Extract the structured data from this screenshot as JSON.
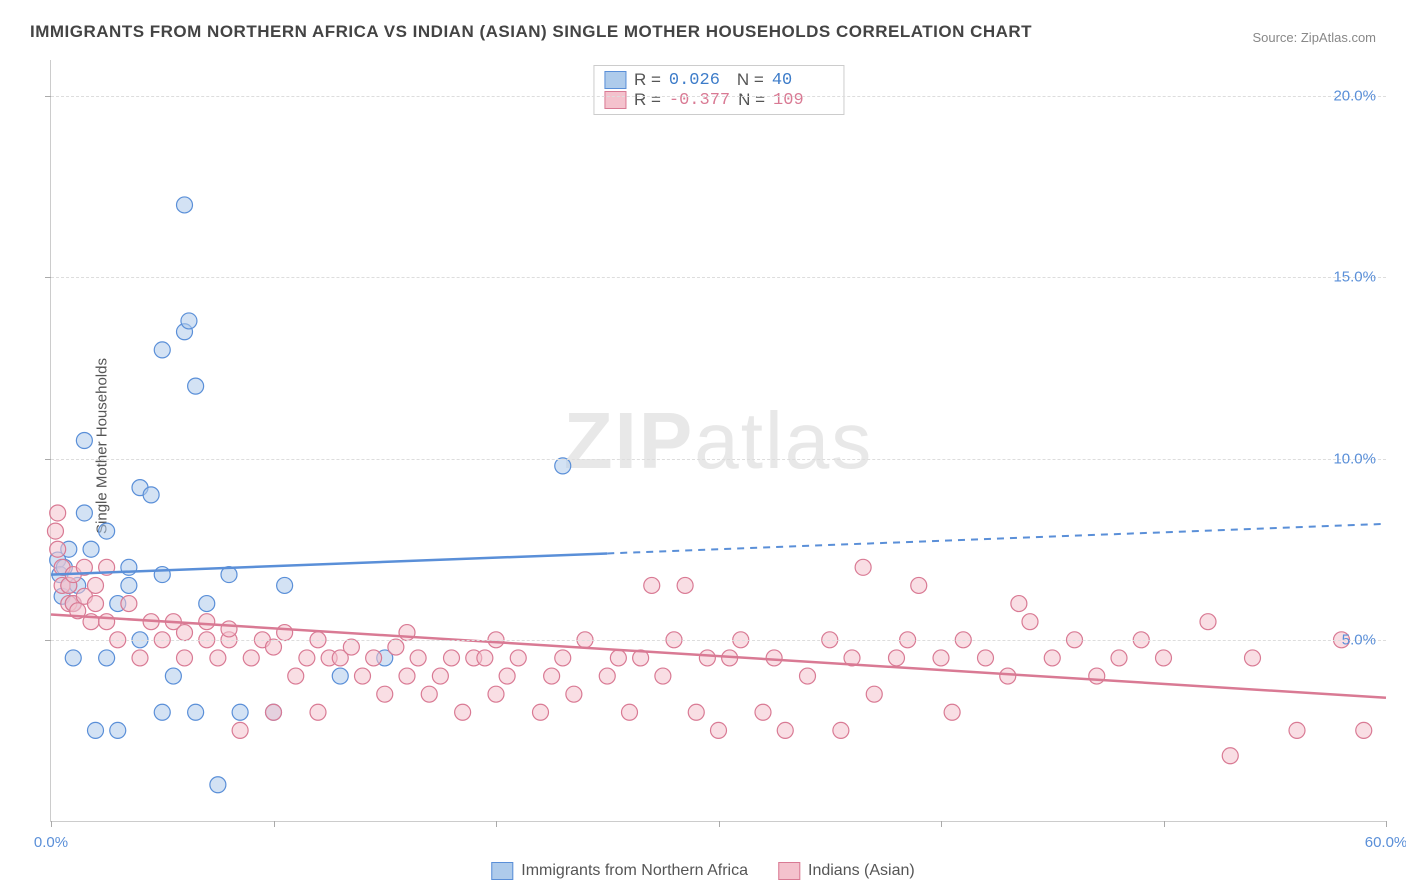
{
  "title": "IMMIGRANTS FROM NORTHERN AFRICA VS INDIAN (ASIAN) SINGLE MOTHER HOUSEHOLDS CORRELATION CHART",
  "source": "Source: ZipAtlas.com",
  "ylabel": "Single Mother Households",
  "watermark_bold": "ZIP",
  "watermark_light": "atlas",
  "chart": {
    "type": "scatter",
    "xlim": [
      0,
      60
    ],
    "ylim": [
      0,
      21
    ],
    "xtick_positions": [
      0,
      10,
      20,
      30,
      40,
      50,
      60
    ],
    "xtick_labels": [
      "0.0%",
      "",
      "",
      "",
      "",
      "",
      "60.0%"
    ],
    "ytick_positions": [
      5,
      10,
      15,
      20
    ],
    "ytick_labels": [
      "5.0%",
      "10.0%",
      "15.0%",
      "20.0%"
    ],
    "grid_color": "#dddddd",
    "background_color": "#ffffff",
    "axis_label_color": "#5a8fd8",
    "series": [
      {
        "name": "Immigrants from Northern Africa",
        "fill": "#aecbeb",
        "stroke": "#5a8fd8",
        "fill_opacity": 0.55,
        "marker_r": 8,
        "r_value": "0.026",
        "n_value": "40",
        "stat_color": "#3d7cc9",
        "regression": {
          "x1": 0,
          "y1": 6.8,
          "x2": 60,
          "y2": 8.2,
          "solid_until_x": 25
        },
        "points": [
          [
            0.3,
            7.2
          ],
          [
            0.4,
            6.8
          ],
          [
            0.5,
            6.2
          ],
          [
            0.6,
            7.0
          ],
          [
            0.8,
            6.5
          ],
          [
            0.8,
            7.5
          ],
          [
            1.0,
            4.5
          ],
          [
            1.0,
            6.0
          ],
          [
            1.2,
            6.5
          ],
          [
            1.5,
            8.5
          ],
          [
            1.5,
            10.5
          ],
          [
            1.8,
            7.5
          ],
          [
            2.0,
            2.5
          ],
          [
            2.5,
            4.5
          ],
          [
            2.5,
            8.0
          ],
          [
            3.0,
            2.5
          ],
          [
            3.0,
            6.0
          ],
          [
            3.5,
            6.5
          ],
          [
            3.5,
            7.0
          ],
          [
            4.0,
            5.0
          ],
          [
            4.0,
            9.2
          ],
          [
            4.5,
            9.0
          ],
          [
            5.0,
            3.0
          ],
          [
            5.0,
            6.8
          ],
          [
            5.0,
            13.0
          ],
          [
            5.5,
            4.0
          ],
          [
            6.0,
            13.5
          ],
          [
            6.0,
            17.0
          ],
          [
            6.2,
            13.8
          ],
          [
            6.5,
            3.0
          ],
          [
            6.5,
            12.0
          ],
          [
            7.0,
            6.0
          ],
          [
            7.5,
            1.0
          ],
          [
            8.0,
            6.8
          ],
          [
            8.5,
            3.0
          ],
          [
            10.0,
            3.0
          ],
          [
            10.5,
            6.5
          ],
          [
            13.0,
            4.0
          ],
          [
            15.0,
            4.5
          ],
          [
            23.0,
            9.8
          ]
        ]
      },
      {
        "name": "Indians (Asian)",
        "fill": "#f4c2cd",
        "stroke": "#d97a94",
        "fill_opacity": 0.55,
        "marker_r": 8,
        "r_value": "-0.377",
        "n_value": "109",
        "stat_color": "#d97a94",
        "regression": {
          "x1": 0,
          "y1": 5.7,
          "x2": 60,
          "y2": 3.4,
          "solid_until_x": 60
        },
        "points": [
          [
            0.2,
            8.0
          ],
          [
            0.3,
            7.5
          ],
          [
            0.3,
            8.5
          ],
          [
            0.5,
            6.5
          ],
          [
            0.5,
            7.0
          ],
          [
            0.8,
            6.0
          ],
          [
            0.8,
            6.5
          ],
          [
            1.0,
            6.0
          ],
          [
            1.0,
            6.8
          ],
          [
            1.2,
            5.8
          ],
          [
            1.5,
            6.2
          ],
          [
            1.5,
            7.0
          ],
          [
            1.8,
            5.5
          ],
          [
            2.0,
            6.0
          ],
          [
            2.0,
            6.5
          ],
          [
            2.5,
            5.5
          ],
          [
            2.5,
            7.0
          ],
          [
            3.0,
            5.0
          ],
          [
            3.5,
            6.0
          ],
          [
            4.0,
            4.5
          ],
          [
            4.5,
            5.5
          ],
          [
            5.0,
            5.0
          ],
          [
            5.5,
            5.5
          ],
          [
            6.0,
            4.5
          ],
          [
            6.0,
            5.2
          ],
          [
            7.0,
            5.0
          ],
          [
            7.0,
            5.5
          ],
          [
            7.5,
            4.5
          ],
          [
            8.0,
            5.0
          ],
          [
            8.0,
            5.3
          ],
          [
            8.5,
            2.5
          ],
          [
            9.0,
            4.5
          ],
          [
            9.5,
            5.0
          ],
          [
            10.0,
            3.0
          ],
          [
            10.0,
            4.8
          ],
          [
            10.5,
            5.2
          ],
          [
            11.0,
            4.0
          ],
          [
            11.5,
            4.5
          ],
          [
            12.0,
            3.0
          ],
          [
            12.0,
            5.0
          ],
          [
            12.5,
            4.5
          ],
          [
            13.0,
            4.5
          ],
          [
            13.5,
            4.8
          ],
          [
            14.0,
            4.0
          ],
          [
            14.5,
            4.5
          ],
          [
            15.0,
            3.5
          ],
          [
            15.5,
            4.8
          ],
          [
            16.0,
            4.0
          ],
          [
            16.0,
            5.2
          ],
          [
            16.5,
            4.5
          ],
          [
            17.0,
            3.5
          ],
          [
            17.5,
            4.0
          ],
          [
            18.0,
            4.5
          ],
          [
            18.5,
            3.0
          ],
          [
            19.0,
            4.5
          ],
          [
            19.5,
            4.5
          ],
          [
            20.0,
            3.5
          ],
          [
            20.0,
            5.0
          ],
          [
            20.5,
            4.0
          ],
          [
            21.0,
            4.5
          ],
          [
            22.0,
            3.0
          ],
          [
            22.5,
            4.0
          ],
          [
            23.0,
            4.5
          ],
          [
            23.5,
            3.5
          ],
          [
            24.0,
            5.0
          ],
          [
            25.0,
            4.0
          ],
          [
            25.5,
            4.5
          ],
          [
            26.0,
            3.0
          ],
          [
            26.5,
            4.5
          ],
          [
            27.0,
            6.5
          ],
          [
            27.5,
            4.0
          ],
          [
            28.0,
            5.0
          ],
          [
            28.5,
            6.5
          ],
          [
            29.0,
            3.0
          ],
          [
            29.5,
            4.5
          ],
          [
            30.0,
            2.5
          ],
          [
            30.5,
            4.5
          ],
          [
            31.0,
            5.0
          ],
          [
            32.0,
            3.0
          ],
          [
            32.5,
            4.5
          ],
          [
            33.0,
            2.5
          ],
          [
            34.0,
            4.0
          ],
          [
            35.0,
            5.0
          ],
          [
            35.5,
            2.5
          ],
          [
            36.0,
            4.5
          ],
          [
            36.5,
            7.0
          ],
          [
            37.0,
            3.5
          ],
          [
            38.0,
            4.5
          ],
          [
            38.5,
            5.0
          ],
          [
            39.0,
            6.5
          ],
          [
            40.0,
            4.5
          ],
          [
            40.5,
            3.0
          ],
          [
            41.0,
            5.0
          ],
          [
            42.0,
            4.5
          ],
          [
            43.0,
            4.0
          ],
          [
            43.5,
            6.0
          ],
          [
            44.0,
            5.5
          ],
          [
            45.0,
            4.5
          ],
          [
            46.0,
            5.0
          ],
          [
            47.0,
            4.0
          ],
          [
            48.0,
            4.5
          ],
          [
            49.0,
            5.0
          ],
          [
            50.0,
            4.5
          ],
          [
            52.0,
            5.5
          ],
          [
            53.0,
            1.8
          ],
          [
            54.0,
            4.5
          ],
          [
            56.0,
            2.5
          ],
          [
            58.0,
            5.0
          ],
          [
            59.0,
            2.5
          ]
        ]
      }
    ]
  }
}
